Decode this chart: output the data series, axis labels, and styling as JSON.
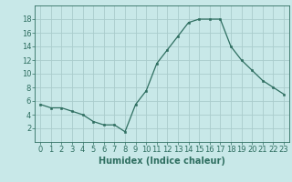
{
  "x": [
    0,
    1,
    2,
    3,
    4,
    5,
    6,
    7,
    8,
    9,
    10,
    11,
    12,
    13,
    14,
    15,
    16,
    17,
    18,
    19,
    20,
    21,
    22,
    23
  ],
  "y": [
    5.5,
    5.0,
    5.0,
    4.5,
    4.0,
    3.0,
    2.5,
    2.5,
    1.5,
    5.5,
    7.5,
    11.5,
    13.5,
    15.5,
    17.5,
    18.0,
    18.0,
    18.0,
    14.0,
    12.0,
    10.5,
    9.0,
    8.0,
    7.0
  ],
  "xlabel": "Humidex (Indice chaleur)",
  "ylabel": "",
  "xlim": [
    -0.5,
    23.5
  ],
  "ylim": [
    0,
    20
  ],
  "yticks": [
    2,
    4,
    6,
    8,
    10,
    12,
    14,
    16,
    18
  ],
  "xticks": [
    0,
    1,
    2,
    3,
    4,
    5,
    6,
    7,
    8,
    9,
    10,
    11,
    12,
    13,
    14,
    15,
    16,
    17,
    18,
    19,
    20,
    21,
    22,
    23
  ],
  "bg_color": "#c8e8e8",
  "line_color": "#2e6e60",
  "marker_color": "#2e6e60",
  "grid_color": "#aacccc",
  "title_fontsize": 7,
  "label_fontsize": 7,
  "tick_fontsize": 6
}
